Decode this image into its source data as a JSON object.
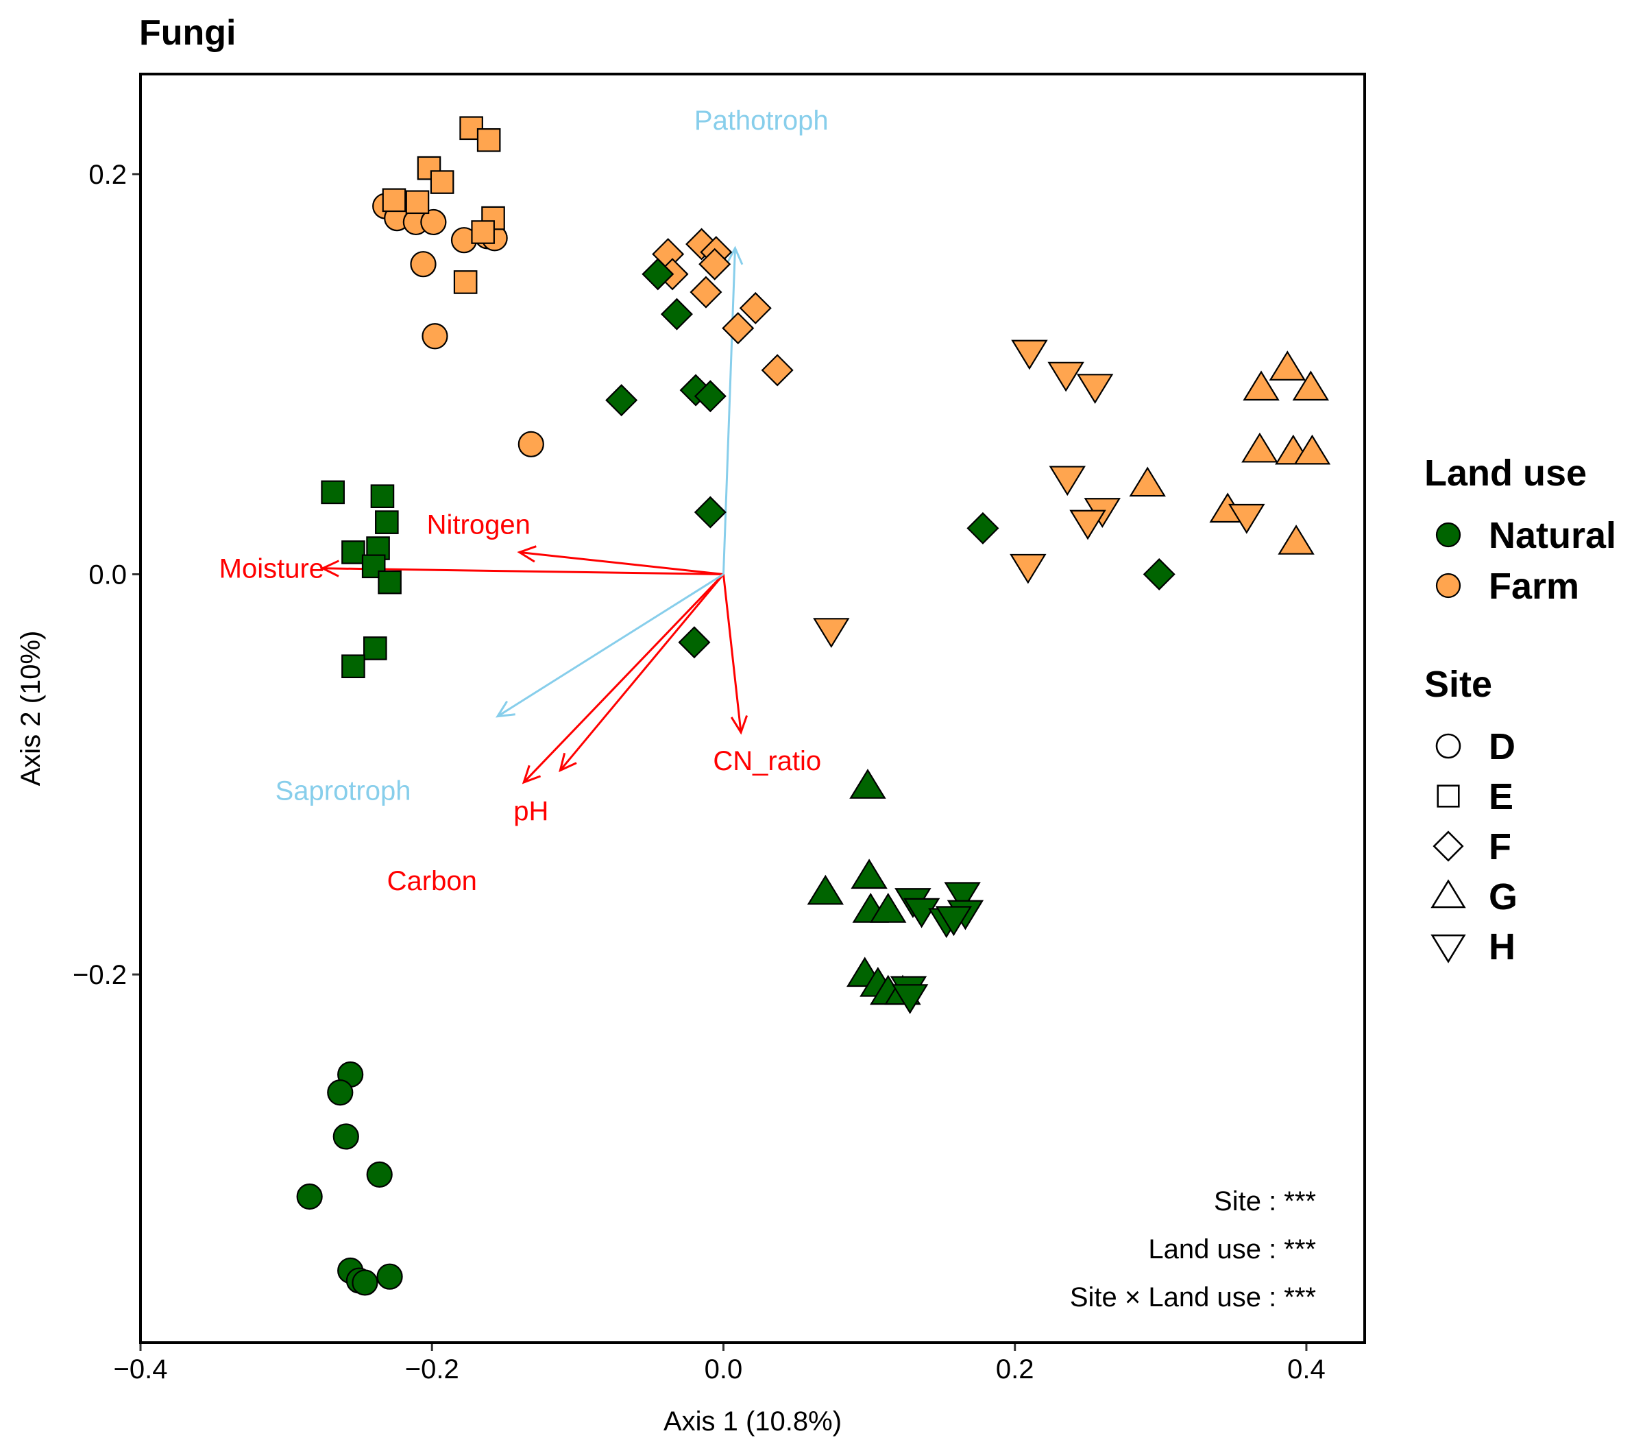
{
  "chart_data": {
    "type": "scatter",
    "title": "Fungi",
    "xlabel": "Axis 1 (10.8%)",
    "ylabel": "Axis 2 (10%)",
    "xlim": [
      -0.4,
      0.44
    ],
    "ylim": [
      -0.384,
      0.25
    ],
    "x_ticks": [
      {
        "value": -0.4,
        "label": "−0.4"
      },
      {
        "value": -0.2,
        "label": "−0.2"
      },
      {
        "value": 0.0,
        "label": "0.0"
      },
      {
        "value": 0.2,
        "label": "0.2"
      },
      {
        "value": 0.4,
        "label": "0.4"
      }
    ],
    "y_ticks": [
      {
        "value": -0.2,
        "label": "−0.2"
      },
      {
        "value": 0.0,
        "label": "0.0"
      },
      {
        "value": 0.2,
        "label": "0.2"
      }
    ],
    "grid": false,
    "legend_position": "right",
    "colors": {
      "Natural": "#006400",
      "Farm": "#FFA54F",
      "env_vector": "#FF0000",
      "guild_vector": "#87CEEB"
    },
    "legends": [
      {
        "title": "Land use",
        "entries": [
          {
            "label": "Natural",
            "group": "Natural",
            "shape": "circle"
          },
          {
            "label": "Farm",
            "group": "Farm",
            "shape": "circle"
          }
        ]
      },
      {
        "title": "Site",
        "entries": [
          {
            "label": "D",
            "shape": "circle"
          },
          {
            "label": "E",
            "shape": "square"
          },
          {
            "label": "F",
            "shape": "diamond"
          },
          {
            "label": "G",
            "shape": "triangle-up"
          },
          {
            "label": "H",
            "shape": "triangle-down"
          }
        ]
      }
    ],
    "annotations": [
      "Site : ***",
      "Land use : ***",
      "Site × Land use : ***"
    ],
    "vectors": [
      {
        "label": "Moisture",
        "kind": "env",
        "x": -0.275,
        "y": 0.003,
        "label_x": -0.31,
        "label_y": 0.003
      },
      {
        "label": "Nitrogen",
        "kind": "env",
        "x": -0.14,
        "y": 0.011,
        "label_x": -0.168,
        "label_y": 0.025
      },
      {
        "label": "pH",
        "kind": "env",
        "x": -0.137,
        "y": -0.104,
        "label_x": -0.132,
        "label_y": -0.118
      },
      {
        "label": "Carbon",
        "kind": "env",
        "x": -0.112,
        "y": -0.098,
        "label_x": -0.2,
        "label_y": -0.153
      },
      {
        "label": "CN_ratio",
        "kind": "env",
        "x": 0.012,
        "y": -0.079,
        "label_x": 0.03,
        "label_y": -0.093
      },
      {
        "label": "Pathotroph",
        "kind": "guild",
        "x": 0.008,
        "y": 0.163,
        "label_x": 0.026,
        "label_y": 0.227
      },
      {
        "label": "Saprotroph",
        "kind": "guild",
        "x": -0.155,
        "y": -0.071,
        "label_x": -0.261,
        "label_y": -0.108
      }
    ],
    "series": [
      {
        "site": "D",
        "land_use": "Farm",
        "shape": "circle",
        "points": [
          [
            -0.232,
            0.184
          ],
          [
            -0.224,
            0.178
          ],
          [
            -0.211,
            0.176
          ],
          [
            -0.199,
            0.176
          ],
          [
            -0.178,
            0.167
          ],
          [
            -0.162,
            0.169
          ],
          [
            -0.157,
            0.168
          ],
          [
            -0.206,
            0.155
          ],
          [
            -0.198,
            0.119
          ],
          [
            -0.132,
            0.065
          ]
        ]
      },
      {
        "site": "D",
        "land_use": "Natural",
        "shape": "circle",
        "points": [
          [
            -0.256,
            -0.25
          ],
          [
            -0.263,
            -0.259
          ],
          [
            -0.259,
            -0.281
          ],
          [
            -0.236,
            -0.3
          ],
          [
            -0.284,
            -0.311
          ],
          [
            -0.256,
            -0.348
          ],
          [
            -0.25,
            -0.353
          ],
          [
            -0.246,
            -0.354
          ],
          [
            -0.229,
            -0.351
          ]
        ]
      },
      {
        "site": "E",
        "land_use": "Farm",
        "shape": "square",
        "points": [
          [
            -0.173,
            0.223
          ],
          [
            -0.161,
            0.217
          ],
          [
            -0.202,
            0.203
          ],
          [
            -0.193,
            0.196
          ],
          [
            -0.226,
            0.187
          ],
          [
            -0.21,
            0.186
          ],
          [
            -0.158,
            0.178
          ],
          [
            -0.165,
            0.171
          ],
          [
            -0.177,
            0.146
          ]
        ]
      },
      {
        "site": "E",
        "land_use": "Natural",
        "shape": "square",
        "points": [
          [
            -0.268,
            0.041
          ],
          [
            -0.234,
            0.039
          ],
          [
            -0.231,
            0.026
          ],
          [
            -0.254,
            0.011
          ],
          [
            -0.237,
            0.013
          ],
          [
            -0.24,
            0.004
          ],
          [
            -0.229,
            -0.004
          ],
          [
            -0.239,
            -0.037
          ],
          [
            -0.254,
            -0.046
          ]
        ]
      },
      {
        "site": "F",
        "land_use": "Farm",
        "shape": "diamond",
        "points": [
          [
            -0.038,
            0.16
          ],
          [
            -0.035,
            0.15
          ],
          [
            -0.015,
            0.165
          ],
          [
            -0.005,
            0.161
          ],
          [
            -0.006,
            0.155
          ],
          [
            -0.012,
            0.141
          ],
          [
            0.022,
            0.133
          ],
          [
            0.01,
            0.123
          ],
          [
            0.037,
            0.102
          ]
        ]
      },
      {
        "site": "F",
        "land_use": "Natural",
        "shape": "diamond",
        "points": [
          [
            -0.045,
            0.15
          ],
          [
            -0.032,
            0.13
          ],
          [
            -0.07,
            0.087
          ],
          [
            -0.019,
            0.092
          ],
          [
            -0.009,
            0.089
          ],
          [
            -0.009,
            0.031
          ],
          [
            -0.02,
            -0.034
          ],
          [
            0.178,
            0.023
          ],
          [
            0.299,
            0.0
          ]
        ]
      },
      {
        "site": "G",
        "land_use": "Farm",
        "shape": "triangle-up",
        "points": [
          [
            0.369,
            0.093
          ],
          [
            0.387,
            0.103
          ],
          [
            0.403,
            0.093
          ],
          [
            0.368,
            0.062
          ],
          [
            0.391,
            0.061
          ],
          [
            0.404,
            0.061
          ],
          [
            0.291,
            0.045
          ],
          [
            0.346,
            0.032
          ],
          [
            0.393,
            0.016
          ]
        ]
      },
      {
        "site": "G",
        "land_use": "Natural",
        "shape": "triangle-up",
        "points": [
          [
            0.099,
            -0.106
          ],
          [
            0.1,
            -0.151
          ],
          [
            0.07,
            -0.159
          ],
          [
            0.101,
            -0.168
          ],
          [
            0.113,
            -0.168
          ],
          [
            0.097,
            -0.2
          ],
          [
            0.106,
            -0.205
          ],
          [
            0.113,
            -0.209
          ],
          [
            0.123,
            -0.209
          ]
        ]
      },
      {
        "site": "H",
        "land_use": "Farm",
        "shape": "triangle-down",
        "points": [
          [
            0.21,
            0.111
          ],
          [
            0.235,
            0.1
          ],
          [
            0.255,
            0.094
          ],
          [
            0.236,
            0.048
          ],
          [
            0.26,
            0.032
          ],
          [
            0.25,
            0.026
          ],
          [
            0.359,
            0.029
          ],
          [
            0.209,
            0.004
          ],
          [
            0.074,
            -0.028
          ]
        ]
      },
      {
        "site": "H",
        "land_use": "Natural",
        "shape": "triangle-down",
        "points": [
          [
            0.13,
            -0.163
          ],
          [
            0.164,
            -0.16
          ],
          [
            0.136,
            -0.168
          ],
          [
            0.153,
            -0.173
          ],
          [
            0.166,
            -0.169
          ],
          [
            0.158,
            -0.172
          ],
          [
            0.127,
            -0.207
          ],
          [
            0.128,
            -0.211
          ]
        ]
      }
    ]
  }
}
